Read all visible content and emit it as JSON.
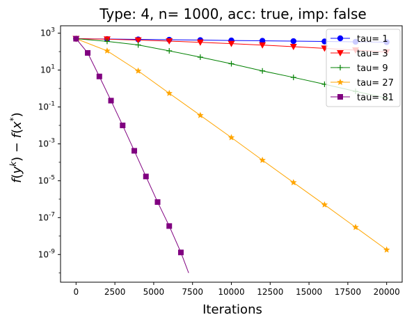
{
  "chart_data": {
    "type": "line",
    "title": "Type: 4, n= 1000, acc: true, imp: false",
    "xlabel": "Iterations",
    "ylabel": "f(y^k) − f(x^*)",
    "xlim": [
      -1000,
      21000
    ],
    "ylim_exponent": [
      -10.5,
      3.4
    ],
    "yscale": "log",
    "x_ticks": [
      0,
      2500,
      5000,
      7500,
      10000,
      12500,
      15000,
      17500,
      20000
    ],
    "x_tick_labels": [
      "0",
      "2500",
      "5000",
      "7500",
      "10000",
      "12500",
      "15000",
      "17500",
      "20000"
    ],
    "y_ticks_exponent": [
      -9,
      -7,
      -5,
      -3,
      -1,
      1,
      3
    ],
    "y_tick_labels": [
      "10^-9",
      "10^-7",
      "10^-5",
      "10^-3",
      "10^-1",
      "10^1",
      "10^3"
    ],
    "legend_position": "top-right",
    "series": [
      {
        "name": "tau= 1",
        "color": "#0000ff",
        "marker": "circle",
        "x": [
          0,
          2000,
          4000,
          6000,
          8000,
          10000,
          12000,
          14000,
          16000,
          18000,
          20000
        ],
        "y": [
          500,
          480,
          460,
          440,
          420,
          400,
          385,
          370,
          355,
          340,
          325
        ]
      },
      {
        "name": "tau= 3",
        "color": "#ff0000",
        "marker": "triangle-down",
        "x": [
          0,
          2000,
          4000,
          6000,
          8000,
          10000,
          12000,
          14000,
          16000,
          18000,
          20000
        ],
        "y": [
          500,
          470,
          420,
          370,
          320,
          270,
          225,
          185,
          150,
          120,
          95
        ]
      },
      {
        "name": "tau= 9",
        "color": "#008000",
        "marker": "plus",
        "x": [
          0,
          2000,
          4000,
          6000,
          8000,
          10000,
          12000,
          14000,
          16000,
          18000,
          20000
        ],
        "y": [
          500,
          360,
          230,
          110,
          50,
          22,
          9,
          4,
          1.7,
          0.7,
          0.3
        ]
      },
      {
        "name": "tau= 27",
        "color": "#ffa500",
        "marker": "star",
        "x": [
          0,
          2000,
          4000,
          6000,
          8000,
          10000,
          12000,
          14000,
          16000,
          18000,
          20000
        ],
        "y": [
          500,
          110,
          9,
          0.55,
          0.035,
          0.0022,
          0.00013,
          8e-06,
          5e-07,
          3e-08,
          1.8e-09
        ]
      },
      {
        "name": "tau= 81",
        "color": "#800080",
        "marker": "square",
        "x": [
          0,
          750,
          1500,
          2250,
          3000,
          3750,
          4500,
          5250,
          6000,
          6750,
          7250
        ],
        "y": [
          500,
          85,
          4.5,
          0.22,
          0.01,
          0.00042,
          1.7e-05,
          7e-07,
          3.5e-08,
          1.3e-09,
          1e-10
        ],
        "no_marker_last": true
      }
    ]
  }
}
